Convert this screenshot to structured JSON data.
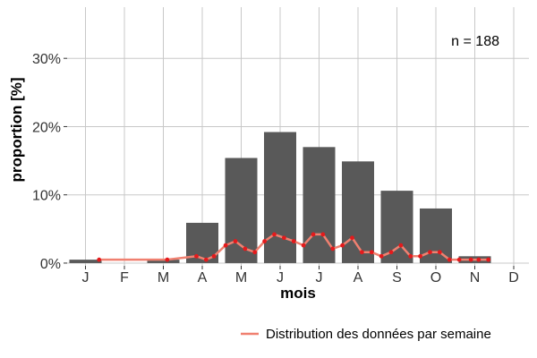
{
  "chart_data": {
    "type": "bar",
    "xlabel": "mois",
    "ylabel": "proportion [%]",
    "categories": [
      "J",
      "F",
      "M",
      "A",
      "M",
      "J",
      "J",
      "A",
      "S",
      "O",
      "N",
      "D"
    ],
    "values": [
      0.5,
      0,
      0.5,
      5.9,
      15.4,
      19.2,
      17.0,
      14.9,
      10.6,
      8.0,
      1.0,
      0
    ],
    "yticks": [
      0,
      10,
      20,
      30
    ],
    "ytick_labels": [
      "0%",
      "10%",
      "20%",
      "30%"
    ],
    "ylim": [
      -0.4,
      37.5
    ],
    "annotation": "n = 188",
    "grid": true,
    "colors": {
      "bar": "#595959",
      "line": "#f08070",
      "point": "#e41a1c",
      "grid": "#c8c8c8"
    },
    "series": [
      {
        "name": "Distribution des données par semaine",
        "type": "line",
        "x": [
          1.35,
          3.1,
          3.85,
          4.1,
          4.3,
          4.6,
          4.85,
          5.1,
          5.35,
          5.6,
          5.85,
          6.1,
          6.35,
          6.6,
          6.85,
          7.1,
          7.35,
          7.6,
          7.85,
          8.1,
          8.35,
          8.6,
          8.85,
          9.1,
          9.35,
          9.6,
          9.85,
          10.1,
          10.35,
          10.6,
          10.9,
          11.1,
          11.35
        ],
        "y": [
          0.5,
          0.5,
          1.0,
          0.5,
          1.0,
          2.6,
          3.2,
          2.1,
          1.6,
          3.2,
          4.2,
          3.7,
          3.2,
          2.6,
          4.2,
          4.2,
          2.1,
          2.6,
          3.7,
          1.6,
          1.6,
          1.0,
          1.6,
          2.6,
          1.0,
          1.0,
          1.6,
          1.6,
          0.5,
          0.5,
          0.5,
          0.5,
          0.5
        ]
      }
    ],
    "legend": {
      "position": "bottom-right",
      "label": "Distribution des données par semaine"
    }
  }
}
